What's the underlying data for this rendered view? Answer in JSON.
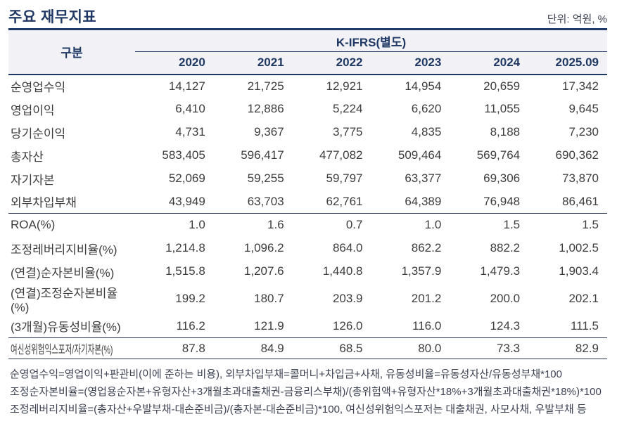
{
  "page": {
    "title": "주요 재무지표",
    "unit_label": "단위: 억원, %"
  },
  "colors": {
    "navy_accent": "#1f3864",
    "header_background": "#f2f2f6",
    "body_text": "#3d3d3d"
  },
  "table": {
    "row_header_label": "구분",
    "group_header": "K-IFRS(별도)",
    "columns": [
      "2020",
      "2021",
      "2022",
      "2023",
      "2024",
      "2025.09"
    ],
    "rows": [
      {
        "label": "순영업수익",
        "values": [
          "14,127",
          "21,725",
          "12,921",
          "14,954",
          "20,659",
          "17,342"
        ]
      },
      {
        "label": "영업이익",
        "values": [
          "6,410",
          "12,886",
          "5,224",
          "6,620",
          "11,055",
          "9,645"
        ]
      },
      {
        "label": "당기순이익",
        "values": [
          "4,731",
          "9,367",
          "3,775",
          "4,835",
          "8,188",
          "7,230"
        ]
      },
      {
        "label": "총자산",
        "values": [
          "583,405",
          "596,417",
          "477,082",
          "509,464",
          "569,764",
          "690,362"
        ]
      },
      {
        "label": "자기자본",
        "values": [
          "52,069",
          "59,255",
          "59,797",
          "63,377",
          "69,306",
          "73,870"
        ]
      },
      {
        "label": "외부차입부채",
        "values": [
          "43,949",
          "63,703",
          "62,761",
          "64,389",
          "76,948",
          "86,461"
        ],
        "divider_after": true
      },
      {
        "label": "ROA(%)",
        "values": [
          "1.0",
          "1.6",
          "0.7",
          "1.0",
          "1.5",
          "1.5"
        ]
      },
      {
        "label": "조정레버리지비율(%)",
        "values": [
          "1,214.8",
          "1,096.2",
          "864.0",
          "862.2",
          "882.2",
          "1,002.5"
        ]
      },
      {
        "label": "(연결)순자본비율(%)",
        "values": [
          "1,515.8",
          "1,207.6",
          "1,440.8",
          "1,357.9",
          "1,479.3",
          "1,903.4"
        ]
      },
      {
        "label": "(연결)조정순자본비율(%)",
        "values": [
          "199.2",
          "180.7",
          "203.9",
          "201.2",
          "200.0",
          "202.1"
        ]
      },
      {
        "label": "(3개월)유동성비율(%)",
        "values": [
          "116.2",
          "121.9",
          "126.0",
          "116.0",
          "124.3",
          "111.5"
        ],
        "divider_after": true
      },
      {
        "label": "여신성위험익스포저/자기자본(%)",
        "values": [
          "87.8",
          "84.9",
          "68.5",
          "80.0",
          "73.3",
          "82.9"
        ],
        "condensed": true
      }
    ]
  },
  "footnotes": [
    "순영업수익=영업이익+판관비(이에 준하는 비용), 외부차입부채=콜머니+차입금+사채, 유동성비율=유동성자산/유동성부채*100",
    "조정순자본비율=(영업용순자본+유형자산+3개월초과대출채권-금융리스부채)/(총위험액+유형자산*18%+3개월초과대출채권*18%)*100",
    "조정레버리지비율=(총자산+우발부채-대손준비금)/(총자본-대손준비금)*100, 여신성위험익스포저는 대출채권, 사모사채, 우발부채 등"
  ]
}
